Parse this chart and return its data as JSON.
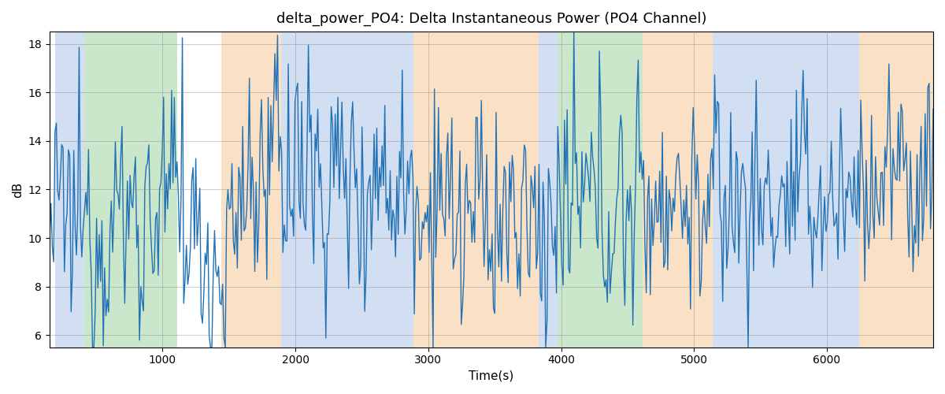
{
  "title": "delta_power_PO4: Delta Instantaneous Power (PO4 Channel)",
  "xlabel": "Time(s)",
  "ylabel": "dB",
  "xlim": [
    150,
    6800
  ],
  "ylim": [
    5.5,
    18.5
  ],
  "line_color": "#2171b5",
  "line_width": 1.0,
  "figsize": [
    12,
    5
  ],
  "dpi": 100,
  "bands": [
    {
      "xmin": 190,
      "xmax": 410,
      "color": "#aec6e8",
      "alpha": 0.55
    },
    {
      "xmin": 410,
      "xmax": 1110,
      "color": "#98d098",
      "alpha": 0.5
    },
    {
      "xmin": 1440,
      "xmax": 1890,
      "color": "#f7c896",
      "alpha": 0.55
    },
    {
      "xmin": 1890,
      "xmax": 2890,
      "color": "#aec6e8",
      "alpha": 0.55
    },
    {
      "xmin": 2890,
      "xmax": 3830,
      "color": "#f7c896",
      "alpha": 0.55
    },
    {
      "xmin": 3830,
      "xmax": 3970,
      "color": "#aec6e8",
      "alpha": 0.55
    },
    {
      "xmin": 3970,
      "xmax": 4610,
      "color": "#98d098",
      "alpha": 0.5
    },
    {
      "xmin": 4610,
      "xmax": 5140,
      "color": "#f7c896",
      "alpha": 0.55
    },
    {
      "xmin": 5140,
      "xmax": 6080,
      "color": "#aec6e8",
      "alpha": 0.55
    },
    {
      "xmin": 6080,
      "xmax": 6240,
      "color": "#aec6e8",
      "alpha": 0.55
    },
    {
      "xmin": 6240,
      "xmax": 6800,
      "color": "#f7c896",
      "alpha": 0.55
    }
  ],
  "xticks": [
    1000,
    2000,
    3000,
    4000,
    5000,
    6000
  ],
  "yticks": [
    6,
    8,
    10,
    12,
    14,
    16,
    18
  ],
  "seed": 12345,
  "num_points": 660
}
